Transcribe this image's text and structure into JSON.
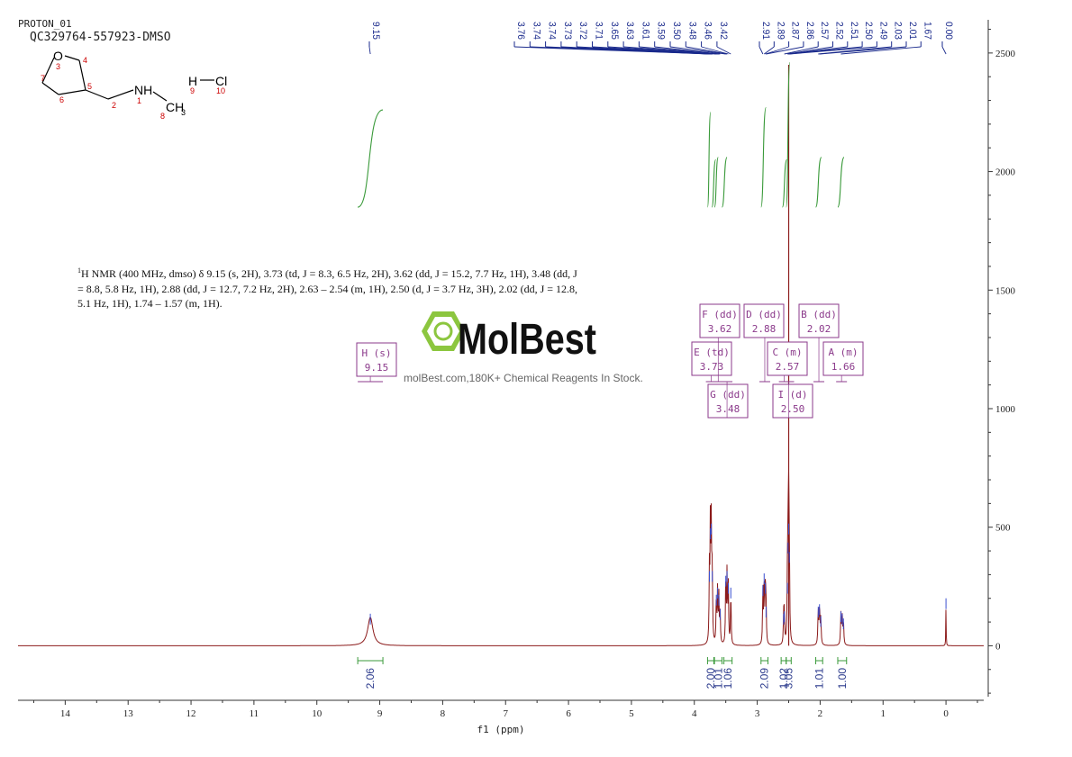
{
  "header": {
    "experiment": "PROTON_01",
    "sample_id": "QC329764-557923-DMSO"
  },
  "molecule": {
    "atom_labels": {
      "O": "O",
      "NH": "NH",
      "CH3": "CH",
      "CH3_sub": "3",
      "H": "H",
      "Cl": "Cl"
    },
    "atom_numbers": [
      "3",
      "4",
      "7",
      "5",
      "2",
      "1",
      "6",
      "8",
      "9",
      "10"
    ]
  },
  "watermark": {
    "brand": "MolBest",
    "url": "molBest.com,180K+ Chemical Reagents In Stock."
  },
  "nmr_text": {
    "sup": "1",
    "body": "H NMR (400 MHz, dmso) δ 9.15 (s, 2H), 3.73 (td, J = 8.3, 6.5 Hz, 2H), 3.62 (dd, J = 15.2, 7.7 Hz, 1H), 3.48 (dd, J = 8.8, 5.8 Hz, 1H), 2.88 (dd, J = 12.7, 7.2 Hz, 2H), 2.63 – 2.54 (m, 1H), 2.50 (d, J = 3.7 Hz, 3H), 2.02 (dd, J = 12.8, 5.1 Hz, 1H), 1.74 – 1.57 (m, 1H)."
  },
  "chart_data": {
    "type": "line",
    "xlabel": "f1 (ppm)",
    "xlim": [
      14.75,
      -0.6
    ],
    "xreverse": true,
    "ylim": [
      -230,
      2640
    ],
    "x_ticks": [
      14,
      13,
      12,
      11,
      10,
      9,
      8,
      7,
      6,
      5,
      4,
      3,
      2,
      1,
      0
    ],
    "y_ticks": [
      0,
      500,
      1000,
      1500,
      2000,
      2500
    ],
    "grid": false,
    "spectrum_color": "#8b1a1a",
    "integral_color": "#3a9a3a",
    "label_color": "#8b3a8b",
    "peak_list_color": "#1a2a8c",
    "peaks": [
      {
        "ppm": 9.15,
        "height": 120,
        "width": 0.05
      },
      {
        "ppm": 3.76,
        "height": 300,
        "width": 0.006
      },
      {
        "ppm": 3.745,
        "height": 480,
        "width": 0.006
      },
      {
        "ppm": 3.73,
        "height": 500,
        "width": 0.006
      },
      {
        "ppm": 3.715,
        "height": 300,
        "width": 0.006
      },
      {
        "ppm": 3.65,
        "height": 200,
        "width": 0.006
      },
      {
        "ppm": 3.63,
        "height": 230,
        "width": 0.006
      },
      {
        "ppm": 3.61,
        "height": 200,
        "width": 0.006
      },
      {
        "ppm": 3.59,
        "height": 140,
        "width": 0.006
      },
      {
        "ppm": 3.5,
        "height": 280,
        "width": 0.006
      },
      {
        "ppm": 3.48,
        "height": 300,
        "width": 0.006
      },
      {
        "ppm": 3.46,
        "height": 250,
        "width": 0.006
      },
      {
        "ppm": 3.42,
        "height": 230,
        "width": 0.006
      },
      {
        "ppm": 2.91,
        "height": 240,
        "width": 0.006
      },
      {
        "ppm": 2.89,
        "height": 290,
        "width": 0.006
      },
      {
        "ppm": 2.87,
        "height": 250,
        "width": 0.006
      },
      {
        "ppm": 2.86,
        "height": 150,
        "width": 0.006
      },
      {
        "ppm": 2.58,
        "height": 120,
        "width": 0.006
      },
      {
        "ppm": 2.57,
        "height": 130,
        "width": 0.006
      },
      {
        "ppm": 2.52,
        "height": 250,
        "width": 0.006
      },
      {
        "ppm": 2.51,
        "height": 420,
        "width": 0.006
      },
      {
        "ppm": 2.5,
        "height": 500,
        "width": 0.006
      },
      {
        "ppm": 2.49,
        "height": 380,
        "width": 0.006
      },
      {
        "ppm": 2.03,
        "height": 150,
        "width": 0.007
      },
      {
        "ppm": 2.01,
        "height": 160,
        "width": 0.007
      },
      {
        "ppm": 1.99,
        "height": 110,
        "width": 0.007
      },
      {
        "ppm": 1.67,
        "height": 130,
        "width": 0.007
      },
      {
        "ppm": 1.65,
        "height": 120,
        "width": 0.007
      },
      {
        "ppm": 1.63,
        "height": 100,
        "width": 0.007
      },
      {
        "ppm": 0.0,
        "height": 185,
        "width": 0.003
      }
    ],
    "peak_labels_top": [
      "9.15",
      "3.76",
      "3.74",
      "3.74",
      "3.73",
      "3.72",
      "3.71",
      "3.65",
      "3.63",
      "3.61",
      "3.59",
      "3.50",
      "3.48",
      "3.46",
      "3.42",
      "2.91",
      "2.89",
      "2.87",
      "2.86",
      "2.57",
      "2.52",
      "2.51",
      "2.50",
      "2.49",
      "2.03",
      "2.01",
      "1.67",
      "0.00"
    ],
    "integrals": [
      {
        "from": 9.35,
        "to": 8.95,
        "value": "2.06"
      },
      {
        "from": 3.79,
        "to": 3.69,
        "value": "2.00"
      },
      {
        "from": 3.68,
        "to": 3.56,
        "value": "1.01"
      },
      {
        "from": 3.53,
        "to": 3.4,
        "value": "1.06"
      },
      {
        "from": 2.94,
        "to": 2.83,
        "value": "2.09"
      },
      {
        "from": 2.62,
        "to": 2.54,
        "value": "1.02"
      },
      {
        "from": 2.54,
        "to": 2.46,
        "value": "3.05"
      },
      {
        "from": 2.07,
        "to": 1.96,
        "value": "1.01"
      },
      {
        "from": 1.72,
        "to": 1.58,
        "value": "1.00"
      }
    ],
    "multiplets": [
      {
        "letter": "H",
        "type": "s",
        "ppm": "9.15"
      },
      {
        "letter": "E",
        "type": "td",
        "ppm": "3.73"
      },
      {
        "letter": "F",
        "type": "dd",
        "ppm": "3.62"
      },
      {
        "letter": "G",
        "type": "dd",
        "ppm": "3.48"
      },
      {
        "letter": "D",
        "type": "dd",
        "ppm": "2.88"
      },
      {
        "letter": "C",
        "type": "m",
        "ppm": "2.57"
      },
      {
        "letter": "I",
        "type": "d",
        "ppm": "2.50"
      },
      {
        "letter": "B",
        "type": "dd",
        "ppm": "2.02"
      },
      {
        "letter": "A",
        "type": "m",
        "ppm": "1.66"
      }
    ]
  }
}
